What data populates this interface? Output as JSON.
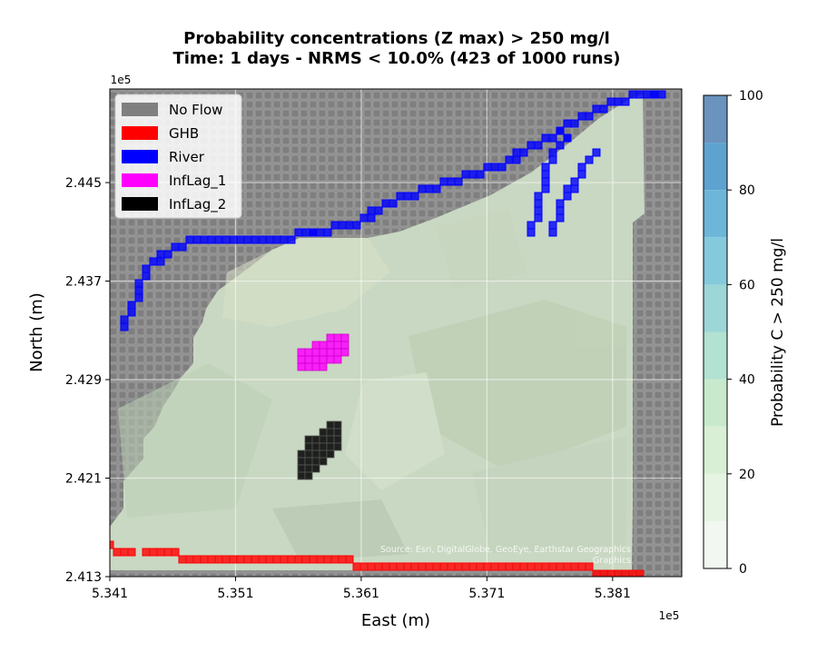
{
  "chart_data": {
    "type": "heatmap",
    "title": "Probability concentrations (Z max) > 250 mg/l",
    "subtitle": "Time: 1 days - NRMS < 10.0% (423 of 1000 runs)",
    "xlabel": "East (m)",
    "ylabel": "North (m)",
    "x_offset_label": "1e5",
    "y_offset_label": "1e5",
    "xlim": [
      5.341,
      5.3865
    ],
    "ylim": [
      2.413,
      2.4526
    ],
    "x_ticks": [
      5.341,
      5.351,
      5.361,
      5.371,
      5.381
    ],
    "x_tick_labels": [
      "5.341",
      "5.351",
      "5.361",
      "5.371",
      "5.381"
    ],
    "y_ticks": [
      2.413,
      2.421,
      2.429,
      2.437,
      2.445
    ],
    "y_tick_labels": [
      "2.413",
      "2.421",
      "2.429",
      "2.437",
      "2.445"
    ],
    "grid": true,
    "legend_position": "top-left",
    "legend": [
      {
        "label": "No Flow",
        "color": "#808080"
      },
      {
        "label": "GHB",
        "color": "#ff0000"
      },
      {
        "label": "River",
        "color": "#0000ff"
      },
      {
        "label": "InfLag_1",
        "color": "#ff00ff"
      },
      {
        "label": "InfLag_2",
        "color": "#000000"
      }
    ],
    "colorbar": {
      "label": "Probability C > 250 mg/l",
      "range": [
        0,
        100
      ],
      "ticks": [
        0,
        20,
        40,
        60,
        80,
        100
      ],
      "tick_labels": [
        "0",
        "20",
        "40",
        "60",
        "80",
        "100"
      ],
      "levels": [
        {
          "from": 0,
          "to": 10,
          "color": "#f2f8f1"
        },
        {
          "from": 10,
          "to": 20,
          "color": "#e6f4e3"
        },
        {
          "from": 20,
          "to": 30,
          "color": "#d9efd5"
        },
        {
          "from": 30,
          "to": 40,
          "color": "#c8e9cc"
        },
        {
          "from": 40,
          "to": 50,
          "color": "#b3e1d2"
        },
        {
          "from": 50,
          "to": 60,
          "color": "#9dd6d6"
        },
        {
          "from": 60,
          "to": 70,
          "color": "#85c9dc"
        },
        {
          "from": 70,
          "to": 80,
          "color": "#6db6d9"
        },
        {
          "from": 80,
          "to": 90,
          "color": "#5ea3d0"
        },
        {
          "from": 90,
          "to": 100,
          "color": "#6a93bd"
        }
      ]
    },
    "probability_field": "0 (no cells above threshold)",
    "basemap_attribution": "Source: Esri, DigitalGlobe, GeoEye, Earthstar Geographics",
    "basemap_attribution_cont": "Graphics",
    "series": [
      {
        "name": "GHB",
        "color": "#ff0000",
        "path": [
          [
            5.3412,
            2.4154
          ],
          [
            5.3423,
            2.4151
          ],
          [
            5.3436,
            2.4148
          ],
          [
            5.3455,
            2.4148
          ],
          [
            5.3476,
            2.4145
          ],
          [
            5.3495,
            2.4145
          ],
          [
            5.3508,
            2.4145
          ],
          [
            5.3513,
            2.4142
          ],
          [
            5.3601,
            2.4142
          ],
          [
            5.3607,
            2.414
          ],
          [
            5.3629,
            2.4138
          ],
          [
            5.3675,
            2.4138
          ],
          [
            5.3763,
            2.4138
          ],
          [
            5.3797,
            2.4135
          ],
          [
            5.3815,
            2.4133
          ],
          [
            5.3838,
            2.4133
          ]
        ]
      },
      {
        "name": "River",
        "color": "#0000ff",
        "path": [
          [
            5.342,
            2.4335
          ],
          [
            5.3428,
            2.435
          ],
          [
            5.3434,
            2.4368
          ],
          [
            5.3444,
            2.4384
          ],
          [
            5.346,
            2.4398
          ],
          [
            5.3478,
            2.4405
          ],
          [
            5.3508,
            2.4405
          ],
          [
            5.354,
            2.4405
          ],
          [
            5.3563,
            2.4408
          ],
          [
            5.36,
            2.4415
          ],
          [
            5.362,
            2.4425
          ],
          [
            5.3648,
            2.444
          ],
          [
            5.368,
            2.445
          ],
          [
            5.372,
            2.4465
          ],
          [
            5.376,
            2.4488
          ],
          [
            5.379,
            2.4505
          ],
          [
            5.3818,
            2.4518
          ],
          [
            5.384,
            2.4522
          ],
          [
            5.3855,
            2.4522
          ]
        ]
      },
      {
        "name": "River-branch-a",
        "color": "#0000ff",
        "path": [
          [
            5.3746,
            2.4412
          ],
          [
            5.3752,
            2.444
          ],
          [
            5.3762,
            2.4475
          ],
          [
            5.378,
            2.4493
          ]
        ]
      },
      {
        "name": "River-branch-b",
        "color": "#0000ff",
        "path": [
          [
            5.3762,
            2.4408
          ],
          [
            5.377,
            2.4432
          ],
          [
            5.3782,
            2.4458
          ],
          [
            5.3798,
            2.4478
          ]
        ]
      }
    ],
    "zones": [
      {
        "name": "InfLag_1",
        "color": "#ff00ff",
        "polygon": [
          [
            5.3559,
            2.4295
          ],
          [
            5.3568,
            2.4295
          ],
          [
            5.358,
            2.4298
          ],
          [
            5.359,
            2.4305
          ],
          [
            5.3598,
            2.4312
          ],
          [
            5.3598,
            2.4324
          ],
          [
            5.3588,
            2.4326
          ],
          [
            5.3578,
            2.4322
          ],
          [
            5.3568,
            2.4316
          ],
          [
            5.3559,
            2.4312
          ]
        ]
      },
      {
        "name": "InfLag_2",
        "color": "#000000",
        "polygon": [
          [
            5.356,
            2.4214
          ],
          [
            5.356,
            2.423
          ],
          [
            5.357,
            2.4244
          ],
          [
            5.3582,
            2.4253
          ],
          [
            5.3595,
            2.4258
          ],
          [
            5.3595,
            2.424
          ],
          [
            5.359,
            2.4228
          ],
          [
            5.3578,
            2.4218
          ],
          [
            5.3568,
            2.421
          ],
          [
            5.3565,
            2.4203
          ]
        ]
      }
    ]
  }
}
